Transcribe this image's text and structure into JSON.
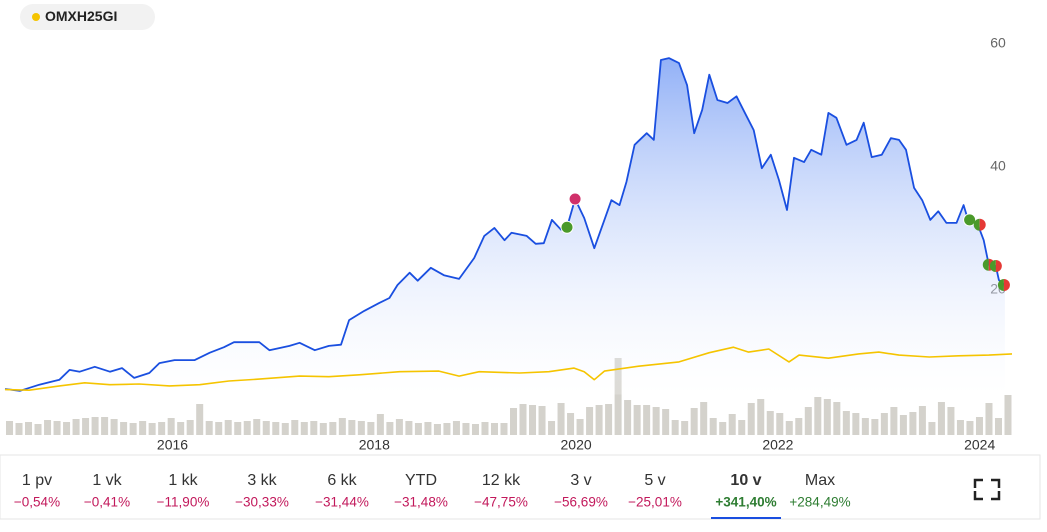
{
  "chart_data": {
    "type": "line",
    "xlim": [
      2014.34,
      2024.33
    ],
    "xticks": [
      2016,
      2018,
      2020,
      2022,
      2024
    ],
    "ylim": [
      3,
      62
    ],
    "yticks": [
      20,
      40,
      60
    ],
    "series": [
      {
        "color": "#1a4fe0",
        "x": [
          2014.34,
          2014.49,
          2014.68,
          2014.88,
          2014.98,
          2015.08,
          2015.23,
          2015.38,
          2015.5,
          2015.62,
          2015.77,
          2015.87,
          2016.02,
          2016.22,
          2016.37,
          2016.51,
          2016.61,
          2016.86,
          2016.96,
          2017.16,
          2017.26,
          2017.41,
          2017.55,
          2017.67,
          2017.75,
          2017.9,
          2018.05,
          2018.15,
          2018.23,
          2018.35,
          2018.43,
          2018.56,
          2018.69,
          2018.84,
          2018.99,
          2019.09,
          2019.19,
          2019.29,
          2019.36,
          2019.51,
          2019.6,
          2019.68,
          2019.76,
          2019.85,
          2019.91,
          2019.99,
          2020.08,
          2020.18,
          2020.28,
          2020.35,
          2020.43,
          2020.5,
          2020.58,
          2020.7,
          2020.77,
          2020.84,
          2020.92,
          2021.02,
          2021.1,
          2021.17,
          2021.25,
          2021.32,
          2021.4,
          2021.5,
          2021.59,
          2021.67,
          2021.76,
          2021.84,
          2021.93,
          2022.01,
          2022.09,
          2022.16,
          2022.26,
          2022.33,
          2022.43,
          2022.5,
          2022.58,
          2022.68,
          2022.78,
          2022.85,
          2022.93,
          2023.03,
          2023.12,
          2023.2,
          2023.27,
          2023.35,
          2023.43,
          2023.51,
          2023.59,
          2023.67,
          2023.77,
          2023.84,
          2023.89,
          2023.97,
          2024.04,
          2024.09,
          2024.16,
          2024.19,
          2024.25
        ],
        "values": [
          3.9,
          3.6,
          4.6,
          5.4,
          7.0,
          6.7,
          7.5,
          6.7,
          7.3,
          5.7,
          6.5,
          8.1,
          8.6,
          8.6,
          9.8,
          10.7,
          11.5,
          11.5,
          10.2,
          10.9,
          11.4,
          10.2,
          10.9,
          11.1,
          15.1,
          16.6,
          17.9,
          18.7,
          20.8,
          22.8,
          21.5,
          23.6,
          22.4,
          21.8,
          25.2,
          28.8,
          30.1,
          28.1,
          29.3,
          28.8,
          27.5,
          27.6,
          31.4,
          29.8,
          30.2,
          34.8,
          31.7,
          26.8,
          31.4,
          34.6,
          33.8,
          37.6,
          43.6,
          45.5,
          44.4,
          57.4,
          57.7,
          56.9,
          53.3,
          45.5,
          49.3,
          55.0,
          50.9,
          50.4,
          51.5,
          48.9,
          46.0,
          39.8,
          42.0,
          37.9,
          33.0,
          41.5,
          40.8,
          42.8,
          42.0,
          48.8,
          48.0,
          43.6,
          44.4,
          47.2,
          41.6,
          42.0,
          44.7,
          44.4,
          42.8,
          36.6,
          34.6,
          31.4,
          32.8,
          30.9,
          30.9,
          33.8,
          31.1,
          31.1,
          28.1,
          24.1,
          23.9,
          21.6,
          20.8
        ]
      },
      {
        "name": "OMXH25GI",
        "color": "#f5c400",
        "x": [
          2014.34,
          2014.58,
          2014.88,
          2015.13,
          2015.38,
          2015.67,
          2015.97,
          2016.27,
          2016.56,
          2016.86,
          2017.26,
          2017.55,
          2017.85,
          2018.25,
          2018.64,
          2018.84,
          2019.04,
          2019.44,
          2019.73,
          2019.98,
          2020.08,
          2020.18,
          2020.28,
          2020.62,
          2021.02,
          2021.32,
          2021.56,
          2021.71,
          2021.91,
          2022.11,
          2022.21,
          2022.5,
          2022.8,
          2023.0,
          2023.2,
          2023.5,
          2023.79,
          2024.09,
          2024.32
        ],
        "values": [
          3.8,
          3.7,
          4.4,
          4.9,
          4.6,
          4.7,
          4.4,
          4.6,
          5.2,
          5.5,
          6.0,
          5.9,
          6.2,
          6.7,
          6.8,
          6.0,
          6.7,
          6.5,
          6.7,
          7.3,
          6.7,
          5.4,
          6.8,
          7.6,
          8.3,
          9.8,
          10.7,
          9.9,
          10.4,
          8.3,
          9.4,
          8.9,
          9.6,
          9.9,
          9.4,
          9.1,
          9.3,
          9.4,
          9.6
        ]
      }
    ],
    "markers": [
      {
        "x": 2019.91,
        "value": 30.2,
        "colors": [
          "#4a9a2a"
        ]
      },
      {
        "x": 2019.99,
        "value": 34.8,
        "colors": [
          "#d0306a"
        ]
      },
      {
        "x": 2023.9,
        "value": 31.4,
        "colors": [
          "#4a9a2a"
        ]
      },
      {
        "x": 2024.0,
        "value": 30.6,
        "colors": [
          "#4a9a2a",
          "#e53935"
        ]
      },
      {
        "x": 2024.09,
        "value": 24.1,
        "colors": [
          "#4a9a2a",
          "#e53935"
        ]
      },
      {
        "x": 2024.16,
        "value": 23.9,
        "colors": [
          "#4a9a2a",
          "#e53935"
        ]
      },
      {
        "x": 2024.24,
        "value": 20.8,
        "colors": [
          "#4a9a2a",
          "#e53935"
        ]
      }
    ],
    "volume": [
      14,
      12,
      13,
      11,
      15,
      14,
      13,
      16,
      17,
      18,
      18,
      16,
      13,
      12,
      14,
      12,
      13,
      17,
      13,
      15,
      31,
      14,
      13,
      15,
      13,
      14,
      16,
      14,
      13,
      12,
      15,
      13,
      14,
      12,
      13,
      17,
      15,
      14,
      13,
      21,
      13,
      16,
      14,
      12,
      13,
      11,
      12,
      14,
      12,
      11,
      13,
      12,
      12,
      27,
      31,
      30,
      29,
      14,
      32,
      22,
      16,
      28,
      30,
      31,
      77,
      35,
      30,
      30,
      28,
      26,
      15,
      14,
      27,
      33,
      17,
      13,
      21,
      15,
      32,
      36,
      24,
      22,
      14,
      17,
      28,
      38,
      36,
      33,
      24,
      22,
      17,
      16,
      22,
      28,
      20,
      23,
      29,
      13,
      33,
      28,
      15,
      14,
      18,
      32,
      17,
      40
    ]
  },
  "ranges": [
    {
      "label": "1 pv",
      "change": "−0,54%",
      "color": "#c2185b"
    },
    {
      "label": "1 vk",
      "change": "−0,41%",
      "color": "#c2185b"
    },
    {
      "label": "1 kk",
      "change": "−11,90%",
      "color": "#c2185b"
    },
    {
      "label": "3 kk",
      "change": "−30,33%",
      "color": "#c2185b"
    },
    {
      "label": "6 kk",
      "change": "−31,44%",
      "color": "#c2185b"
    },
    {
      "label": "YTD",
      "change": "−31,48%",
      "color": "#c2185b"
    },
    {
      "label": "12 kk",
      "change": "−47,75%",
      "color": "#c2185b"
    },
    {
      "label": "3 v",
      "change": "−56,69%",
      "color": "#c2185b"
    },
    {
      "label": "5 v",
      "change": "−25,01%",
      "color": "#c2185b"
    },
    {
      "label": "10 v",
      "change": "+341,40%",
      "color": "#2e7d32",
      "selected": true
    },
    {
      "label": "Max",
      "change": "+284,49%",
      "color": "#2e7d32"
    }
  ]
}
